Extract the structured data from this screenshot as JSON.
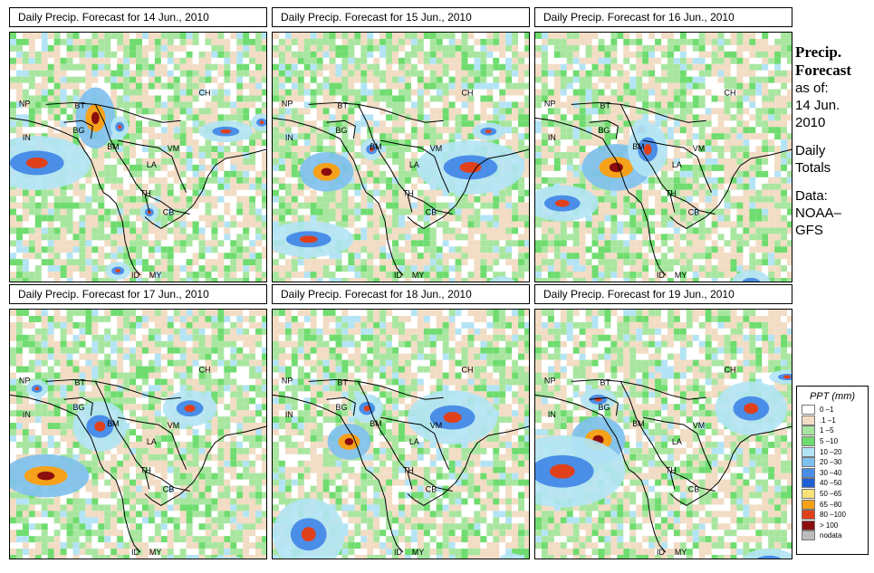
{
  "panels": [
    {
      "title": "Daily Precip. Forecast for  14 Jun., 2010"
    },
    {
      "title": "Daily Precip. Forecast for  15 Jun., 2010"
    },
    {
      "title": "Daily Precip. Forecast for  16 Jun., 2010"
    },
    {
      "title": "Daily Precip. Forecast for  17 Jun., 2010"
    },
    {
      "title": "Daily Precip. Forecast for  18 Jun., 2010"
    },
    {
      "title": "Daily Precip. Forecast for  19 Jun., 2010"
    }
  ],
  "country_labels": [
    "CH",
    "NP",
    "BT",
    "IN",
    "BG",
    "BM",
    "VM",
    "LA",
    "TH",
    "CB",
    "MY",
    "ID"
  ],
  "sidebar": {
    "title_line1": "Precip.",
    "title_line2": "Forecast",
    "asof_line1": "as of:",
    "asof_line2": "14 Jun.",
    "asof_line3": "2010",
    "totals_line1": "Daily",
    "totals_line2": "Totals",
    "data_line1": "Data:",
    "data_line2": "NOAA–",
    "data_line3": "GFS"
  },
  "legend": {
    "title": "PPT (mm)",
    "items": [
      {
        "label": "0 –1",
        "color": "#ffffff"
      },
      {
        "label": ".1 –1",
        "color": "#f2dcc4"
      },
      {
        "label": "1 –5",
        "color": "#a8e6a0"
      },
      {
        "label": "5 –10",
        "color": "#6fdc6f"
      },
      {
        "label": "10 –20",
        "color": "#b3e4f5"
      },
      {
        "label": "20 –30",
        "color": "#7ec0ee"
      },
      {
        "label": "30 –40",
        "color": "#4a8ee8"
      },
      {
        "label": "40 –50",
        "color": "#1f5fd6"
      },
      {
        "label": "50 –65",
        "color": "#f7e27a"
      },
      {
        "label": "65 –80",
        "color": "#f6a11a"
      },
      {
        "label": "80 –100",
        "color": "#e0401a"
      },
      {
        "label": "> 100",
        "color": "#8c0d0d"
      },
      {
        "label": "nodata",
        "color": "#bdbdbd"
      }
    ]
  }
}
